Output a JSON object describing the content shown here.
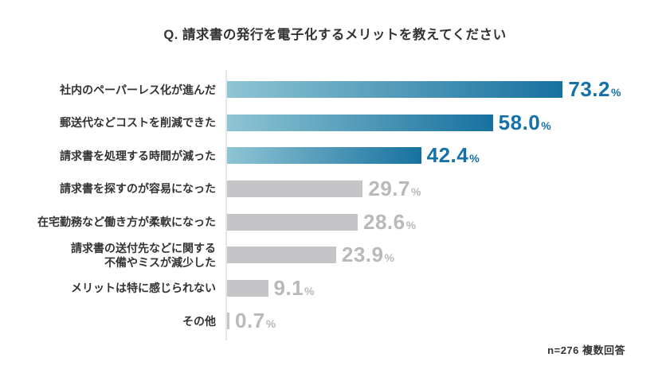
{
  "title": "Q. 請求書の発行を電子化するメリットを教えてください",
  "footnote": "n=276 複数回答",
  "colors": {
    "bar_gradient_start": "#8fc5d4",
    "bar_gradient_end": "#17719f",
    "bar_muted": "#c5c5c7",
    "value_highlight": "#1571a8",
    "value_muted": "#b9b9bb",
    "label_text": "#333333",
    "axis_line": "#dfe9ec"
  },
  "chart_data": {
    "type": "bar",
    "orientation": "horizontal",
    "title": "Q. 請求書の発行を電子化するメリットを教えてください",
    "categories": [
      "社内のペーパーレス化が進んだ",
      "郵送代などコストを削減できた",
      "請求書を処理する時間が減った",
      "請求書を探すのが容易になった",
      "在宅勤務など働き方が柔軟になった",
      "請求書の送付先などに関する\n不備やミスが減少した",
      "メリットは特に感じられない",
      "その他"
    ],
    "values": [
      73.2,
      58.0,
      42.4,
      29.7,
      28.6,
      23.9,
      9.1,
      0.7
    ],
    "value_labels": [
      "73.2",
      "58.0",
      "42.4",
      "29.7",
      "28.6",
      "23.9",
      "9.1",
      "0.7"
    ],
    "unit": "%",
    "highlighted": [
      true,
      true,
      true,
      false,
      false,
      false,
      false,
      false
    ],
    "note": "n=276 複数回答",
    "xlabel": "",
    "ylabel": "",
    "legend": false,
    "grid": false,
    "value_axis_hidden": true
  }
}
